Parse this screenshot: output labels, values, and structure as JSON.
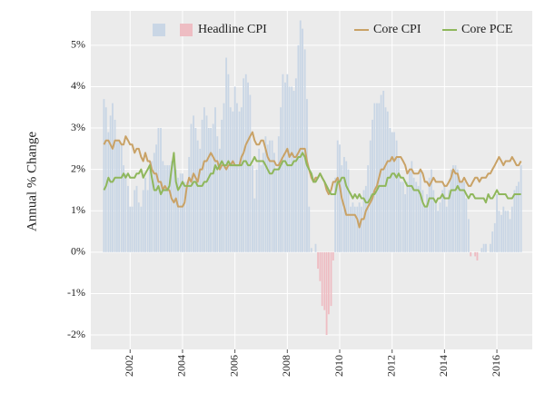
{
  "chart_data": {
    "type": "combo",
    "y_label": "Annual % Change",
    "legend": "top",
    "grid": true,
    "xlim": [
      2000.5,
      2017.35
    ],
    "ylim": [
      -2.35,
      5.83
    ],
    "xticks": [
      2002,
      2004,
      2006,
      2008,
      2010,
      2012,
      2014,
      2016
    ],
    "yticks": [
      {
        "value": -2,
        "label": "-2%"
      },
      {
        "value": -1,
        "label": "-1%"
      },
      {
        "value": 0,
        "label": "0%"
      },
      {
        "value": 1,
        "label": "1%"
      },
      {
        "value": 2,
        "label": "2%"
      },
      {
        "value": 3,
        "label": "3%"
      },
      {
        "value": 4,
        "label": "4%"
      },
      {
        "value": 5,
        "label": "5%"
      }
    ],
    "x": [
      2001.0,
      2001.08,
      2001.17,
      2001.25,
      2001.33,
      2001.42,
      2001.5,
      2001.58,
      2001.67,
      2001.75,
      2001.83,
      2001.92,
      2002.0,
      2002.08,
      2002.17,
      2002.25,
      2002.33,
      2002.42,
      2002.5,
      2002.58,
      2002.67,
      2002.75,
      2002.83,
      2002.92,
      2003.0,
      2003.08,
      2003.17,
      2003.25,
      2003.33,
      2003.42,
      2003.5,
      2003.58,
      2003.67,
      2003.75,
      2003.83,
      2003.92,
      2004.0,
      2004.08,
      2004.17,
      2004.25,
      2004.33,
      2004.42,
      2004.5,
      2004.58,
      2004.67,
      2004.75,
      2004.83,
      2004.92,
      2005.0,
      2005.08,
      2005.17,
      2005.25,
      2005.33,
      2005.42,
      2005.5,
      2005.58,
      2005.67,
      2005.75,
      2005.83,
      2005.92,
      2006.0,
      2006.08,
      2006.17,
      2006.25,
      2006.33,
      2006.42,
      2006.5,
      2006.58,
      2006.67,
      2006.75,
      2006.83,
      2006.92,
      2007.0,
      2007.08,
      2007.17,
      2007.25,
      2007.33,
      2007.42,
      2007.5,
      2007.58,
      2007.67,
      2007.75,
      2007.83,
      2007.92,
      2008.0,
      2008.08,
      2008.17,
      2008.25,
      2008.33,
      2008.42,
      2008.5,
      2008.58,
      2008.67,
      2008.75,
      2008.83,
      2008.92,
      2009.0,
      2009.08,
      2009.17,
      2009.25,
      2009.33,
      2009.42,
      2009.5,
      2009.58,
      2009.67,
      2009.75,
      2009.83,
      2009.92,
      2010.0,
      2010.08,
      2010.17,
      2010.25,
      2010.33,
      2010.42,
      2010.5,
      2010.58,
      2010.67,
      2010.75,
      2010.83,
      2010.92,
      2011.0,
      2011.08,
      2011.17,
      2011.25,
      2011.33,
      2011.42,
      2011.5,
      2011.58,
      2011.67,
      2011.75,
      2011.83,
      2011.92,
      2012.0,
      2012.08,
      2012.17,
      2012.25,
      2012.33,
      2012.42,
      2012.5,
      2012.58,
      2012.67,
      2012.75,
      2012.83,
      2012.92,
      2013.0,
      2013.08,
      2013.17,
      2013.25,
      2013.33,
      2013.42,
      2013.5,
      2013.58,
      2013.67,
      2013.75,
      2013.83,
      2013.92,
      2014.0,
      2014.08,
      2014.17,
      2014.25,
      2014.33,
      2014.42,
      2014.5,
      2014.58,
      2014.67,
      2014.75,
      2014.83,
      2014.92,
      2015.0,
      2015.08,
      2015.17,
      2015.25,
      2015.33,
      2015.42,
      2015.5,
      2015.58,
      2015.67,
      2015.75,
      2015.83,
      2015.92,
      2016.0,
      2016.08,
      2016.17,
      2016.25,
      2016.33,
      2016.42,
      2016.5,
      2016.58,
      2016.67,
      2016.75,
      2016.83,
      2016.92
    ],
    "series": [
      {
        "name": "Headline CPI",
        "type": "bar",
        "color": "#c9d6e5",
        "negative_color": "#eebdc3",
        "values": [
          3.7,
          3.5,
          2.9,
          3.3,
          3.6,
          3.2,
          2.7,
          2.7,
          2.6,
          2.1,
          1.9,
          1.6,
          1.1,
          1.1,
          1.5,
          1.6,
          1.2,
          1.1,
          1.5,
          1.8,
          1.5,
          2.0,
          2.2,
          2.4,
          2.6,
          3.0,
          3.0,
          2.2,
          2.1,
          2.1,
          2.1,
          2.2,
          2.3,
          2.0,
          1.8,
          1.9,
          1.9,
          1.7,
          1.7,
          2.3,
          3.1,
          3.3,
          3.0,
          2.7,
          2.5,
          3.2,
          3.5,
          3.3,
          3.0,
          3.0,
          3.1,
          3.5,
          2.8,
          2.5,
          3.2,
          3.6,
          4.7,
          4.3,
          3.5,
          3.4,
          4.0,
          3.6,
          3.4,
          3.5,
          4.2,
          4.3,
          4.1,
          3.8,
          2.1,
          1.3,
          2.0,
          2.5,
          2.1,
          2.4,
          2.8,
          2.6,
          2.7,
          2.7,
          2.4,
          2.0,
          2.8,
          3.5,
          4.3,
          4.1,
          4.3,
          4.0,
          4.0,
          3.9,
          4.2,
          5.0,
          5.6,
          5.4,
          4.9,
          3.7,
          1.1,
          0.1,
          0.0,
          0.2,
          -0.4,
          -0.7,
          -1.3,
          -1.4,
          -2.0,
          -1.5,
          -1.3,
          -0.2,
          1.8,
          2.7,
          2.6,
          2.1,
          2.3,
          2.2,
          2.0,
          1.1,
          1.2,
          1.1,
          1.1,
          1.2,
          1.1,
          1.5,
          1.6,
          2.1,
          2.7,
          3.2,
          3.6,
          3.6,
          3.6,
          3.8,
          3.9,
          3.5,
          3.4,
          3.0,
          2.9,
          2.9,
          2.7,
          2.3,
          1.7,
          1.7,
          1.4,
          1.7,
          2.0,
          2.2,
          1.8,
          1.7,
          1.6,
          2.0,
          1.5,
          1.1,
          1.4,
          1.8,
          2.0,
          1.5,
          1.2,
          1.0,
          1.2,
          1.5,
          1.6,
          1.1,
          1.5,
          2.0,
          2.1,
          2.1,
          2.0,
          1.7,
          1.7,
          1.7,
          1.3,
          0.8,
          -0.1,
          0.0,
          -0.1,
          -0.2,
          0.0,
          0.1,
          0.2,
          0.2,
          0.0,
          0.2,
          0.5,
          0.7,
          1.4,
          1.0,
          0.9,
          1.1,
          1.0,
          1.0,
          0.8,
          1.1,
          1.5,
          1.6,
          1.7,
          2.1
        ]
      },
      {
        "name": "Core CPI",
        "type": "line",
        "color": "#c9a266",
        "values": [
          2.6,
          2.7,
          2.7,
          2.6,
          2.5,
          2.7,
          2.7,
          2.7,
          2.6,
          2.6,
          2.8,
          2.7,
          2.6,
          2.6,
          2.4,
          2.5,
          2.5,
          2.3,
          2.2,
          2.4,
          2.2,
          2.2,
          2.0,
          1.9,
          1.9,
          1.7,
          1.7,
          1.5,
          1.6,
          1.5,
          1.5,
          1.3,
          1.2,
          1.3,
          1.1,
          1.1,
          1.1,
          1.2,
          1.6,
          1.8,
          1.7,
          1.9,
          1.8,
          1.7,
          2.0,
          2.0,
          2.2,
          2.2,
          2.3,
          2.4,
          2.3,
          2.2,
          2.2,
          2.0,
          2.1,
          2.1,
          2.0,
          2.1,
          2.1,
          2.2,
          2.1,
          2.1,
          2.1,
          2.3,
          2.4,
          2.6,
          2.7,
          2.8,
          2.9,
          2.7,
          2.6,
          2.6,
          2.7,
          2.7,
          2.5,
          2.3,
          2.2,
          2.2,
          2.2,
          2.1,
          2.1,
          2.2,
          2.3,
          2.4,
          2.5,
          2.3,
          2.4,
          2.3,
          2.3,
          2.4,
          2.5,
          2.5,
          2.5,
          2.2,
          2.0,
          1.8,
          1.7,
          1.8,
          1.8,
          1.9,
          1.8,
          1.7,
          1.5,
          1.4,
          1.5,
          1.7,
          1.7,
          1.8,
          1.6,
          1.3,
          1.1,
          0.9,
          0.9,
          0.9,
          0.9,
          0.9,
          0.8,
          0.6,
          0.8,
          0.8,
          1.0,
          1.1,
          1.2,
          1.3,
          1.5,
          1.6,
          1.8,
          2.0,
          2.0,
          2.1,
          2.2,
          2.2,
          2.3,
          2.2,
          2.3,
          2.3,
          2.3,
          2.2,
          2.1,
          1.9,
          2.0,
          2.0,
          1.9,
          1.9,
          1.9,
          2.0,
          1.9,
          1.7,
          1.7,
          1.6,
          1.7,
          1.8,
          1.7,
          1.7,
          1.7,
          1.7,
          1.6,
          1.6,
          1.7,
          1.8,
          2.0,
          1.9,
          1.9,
          1.7,
          1.7,
          1.8,
          1.7,
          1.6,
          1.6,
          1.7,
          1.8,
          1.8,
          1.7,
          1.8,
          1.8,
          1.8,
          1.9,
          1.9,
          2.0,
          2.1,
          2.2,
          2.3,
          2.2,
          2.1,
          2.2,
          2.2,
          2.2,
          2.3,
          2.2,
          2.1,
          2.1,
          2.2
        ]
      },
      {
        "name": "Core PCE",
        "type": "line",
        "color": "#8fb75c",
        "values": [
          1.5,
          1.6,
          1.8,
          1.7,
          1.7,
          1.8,
          1.8,
          1.8,
          1.8,
          1.9,
          1.8,
          1.9,
          1.8,
          1.8,
          1.8,
          1.9,
          1.9,
          2.0,
          1.8,
          1.9,
          2.0,
          2.1,
          1.8,
          1.5,
          1.5,
          1.6,
          1.4,
          1.5,
          1.5,
          1.5,
          1.6,
          2.0,
          2.4,
          1.7,
          1.5,
          1.6,
          1.7,
          1.6,
          1.6,
          1.6,
          1.6,
          1.7,
          1.7,
          1.6,
          1.6,
          1.6,
          1.7,
          1.7,
          1.8,
          1.9,
          1.9,
          2.1,
          2.0,
          2.1,
          2.2,
          2.1,
          2.1,
          2.2,
          2.1,
          2.1,
          2.1,
          2.1,
          2.1,
          2.1,
          2.2,
          2.2,
          2.1,
          2.1,
          2.2,
          2.3,
          2.2,
          2.2,
          2.2,
          2.2,
          2.1,
          2.0,
          1.9,
          1.9,
          2.0,
          2.0,
          2.0,
          2.1,
          2.2,
          2.2,
          2.1,
          2.1,
          2.1,
          2.2,
          2.2,
          2.3,
          2.3,
          2.4,
          2.3,
          2.1,
          2.0,
          1.9,
          1.7,
          1.7,
          1.8,
          1.9,
          1.8,
          1.7,
          1.6,
          1.5,
          1.4,
          1.4,
          1.4,
          1.7,
          1.7,
          1.8,
          1.8,
          1.6,
          1.5,
          1.4,
          1.3,
          1.4,
          1.3,
          1.4,
          1.3,
          1.3,
          1.2,
          1.2,
          1.3,
          1.4,
          1.4,
          1.5,
          1.6,
          1.6,
          1.6,
          1.6,
          1.8,
          1.8,
          1.9,
          1.9,
          1.8,
          1.9,
          1.8,
          1.8,
          1.7,
          1.6,
          1.6,
          1.6,
          1.5,
          1.5,
          1.5,
          1.4,
          1.2,
          1.1,
          1.1,
          1.3,
          1.3,
          1.3,
          1.2,
          1.3,
          1.3,
          1.4,
          1.3,
          1.3,
          1.3,
          1.5,
          1.5,
          1.5,
          1.6,
          1.5,
          1.5,
          1.5,
          1.4,
          1.3,
          1.4,
          1.4,
          1.3,
          1.3,
          1.3,
          1.3,
          1.3,
          1.2,
          1.4,
          1.3,
          1.3,
          1.4,
          1.5,
          1.4,
          1.4,
          1.4,
          1.4,
          1.3,
          1.3,
          1.3,
          1.4,
          1.4,
          1.4,
          1.4
        ]
      }
    ]
  }
}
